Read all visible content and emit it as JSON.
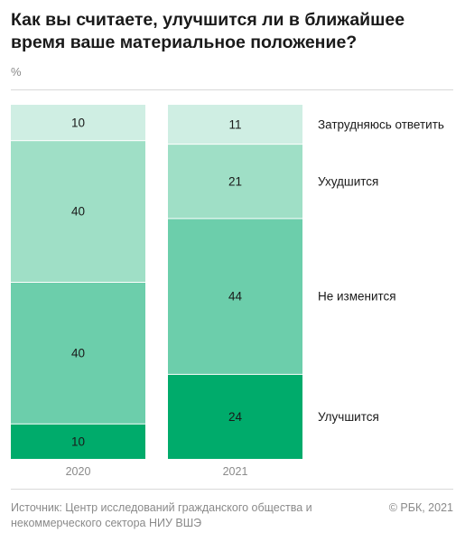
{
  "header": {
    "title": "Как вы считаете, улучшится ли в ближайшее время ваше материальное положение?",
    "unit": "%"
  },
  "footer": {
    "source": "Источник: Центр исследований гражданского общества и некоммерческого сектора НИУ ВШЭ",
    "copyright": "© РБК, 2021"
  },
  "colors": {
    "Затрудняюсь ответить": "#cfeee3",
    "Ухудшится": "#9fdfc6",
    "Не изменится": "#6cceab",
    "Улучшится": "#00ab6b"
  },
  "chart_data": {
    "type": "bar",
    "stacked": true,
    "normalized": true,
    "categories": [
      "2020",
      "2021"
    ],
    "series": [
      {
        "name": "Улучшится",
        "values": [
          10,
          24
        ]
      },
      {
        "name": "Не изменится",
        "values": [
          40,
          44
        ]
      },
      {
        "name": "Ухудшится",
        "values": [
          40,
          21
        ]
      },
      {
        "name": "Затрудняюсь ответить",
        "values": [
          10,
          11
        ]
      }
    ],
    "title": "Как вы считаете, улучшится ли в ближайшее время ваше материальное положение?",
    "ylabel": "%",
    "legend": "right"
  }
}
